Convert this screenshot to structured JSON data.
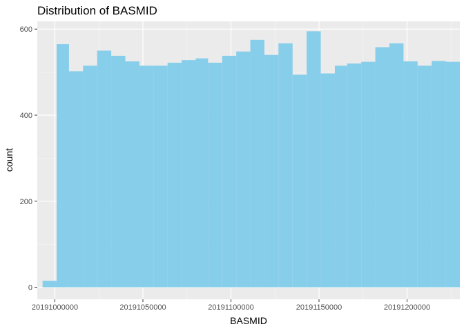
{
  "chart_data": {
    "type": "bar",
    "title": "Distribution of BASMID",
    "xlabel": "BASMID",
    "ylabel": "count",
    "xlim": [
      20190990000,
      20191230000
    ],
    "ylim": [
      -28,
      618
    ],
    "x_ticks": [
      {
        "value": 20191000000,
        "label": "20191000000"
      },
      {
        "value": 20191050000,
        "label": "20191050000"
      },
      {
        "value": 20191100000,
        "label": "20191100000"
      },
      {
        "value": 20191150000,
        "label": "20191150000"
      },
      {
        "value": 20191200000,
        "label": "20191200000"
      }
    ],
    "y_ticks": [
      {
        "value": 0,
        "label": "0"
      },
      {
        "value": 200,
        "label": "200"
      },
      {
        "value": 400,
        "label": "400"
      },
      {
        "value": 600,
        "label": "600"
      }
    ],
    "grid": true,
    "bar_color": "#87CEEB",
    "panel_color": "#EBEBEB",
    "bins": [
      {
        "x0": 20190993000,
        "x1": 20191001000,
        "count": 15
      },
      {
        "x0": 20191001000,
        "x1": 20191008000,
        "count": 565
      },
      {
        "x0": 20191008000,
        "x1": 20191016000,
        "count": 502
      },
      {
        "x0": 20191016000,
        "x1": 20191024000,
        "count": 515
      },
      {
        "x0": 20191024000,
        "x1": 20191032000,
        "count": 550
      },
      {
        "x0": 20191032000,
        "x1": 20191040000,
        "count": 538
      },
      {
        "x0": 20191040000,
        "x1": 20191048000,
        "count": 525
      },
      {
        "x0": 20191048000,
        "x1": 20191056000,
        "count": 515
      },
      {
        "x0": 20191056000,
        "x1": 20191064000,
        "count": 515
      },
      {
        "x0": 20191064000,
        "x1": 20191072000,
        "count": 522
      },
      {
        "x0": 20191072000,
        "x1": 20191080000,
        "count": 528
      },
      {
        "x0": 20191080000,
        "x1": 20191087000,
        "count": 532
      },
      {
        "x0": 20191087000,
        "x1": 20191095000,
        "count": 522
      },
      {
        "x0": 20191095000,
        "x1": 20191103000,
        "count": 538
      },
      {
        "x0": 20191103000,
        "x1": 20191111000,
        "count": 548
      },
      {
        "x0": 20191111000,
        "x1": 20191119000,
        "count": 575
      },
      {
        "x0": 20191119000,
        "x1": 20191127000,
        "count": 540
      },
      {
        "x0": 20191127000,
        "x1": 20191135000,
        "count": 567
      },
      {
        "x0": 20191135000,
        "x1": 20191143000,
        "count": 494
      },
      {
        "x0": 20191143000,
        "x1": 20191151000,
        "count": 595
      },
      {
        "x0": 20191151000,
        "x1": 20191159000,
        "count": 497
      },
      {
        "x0": 20191159000,
        "x1": 20191166000,
        "count": 515
      },
      {
        "x0": 20191166000,
        "x1": 20191174000,
        "count": 520
      },
      {
        "x0": 20191174000,
        "x1": 20191182000,
        "count": 524
      },
      {
        "x0": 20191182000,
        "x1": 20191190000,
        "count": 558
      },
      {
        "x0": 20191190000,
        "x1": 20191198000,
        "count": 567
      },
      {
        "x0": 20191198000,
        "x1": 20191206000,
        "count": 525
      },
      {
        "x0": 20191206000,
        "x1": 20191214000,
        "count": 515
      },
      {
        "x0": 20191214000,
        "x1": 20191222000,
        "count": 526
      },
      {
        "x0": 20191222000,
        "x1": 20191230000,
        "count": 524
      }
    ]
  }
}
